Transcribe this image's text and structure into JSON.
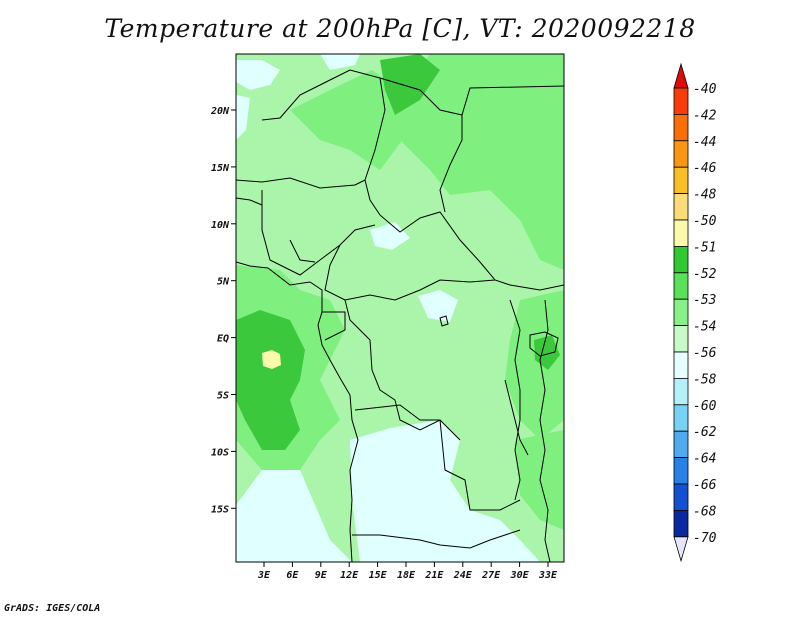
{
  "title": "Temperature at 200hPa [C], VT: 2020092218",
  "credit": "GrADS: IGES/COLA",
  "lat_labels": [
    "20N",
    "15N",
    "10N",
    "5N",
    "EQ",
    "5S",
    "10S",
    "15S"
  ],
  "lon_labels": [
    "3E",
    "6E",
    "9E",
    "12E",
    "15E",
    "18E",
    "21E",
    "24E",
    "27E",
    "30E",
    "33E"
  ],
  "colorbar": {
    "labels": [
      "-40",
      "-42",
      "-44",
      "-46",
      "-48",
      "-50",
      "-51",
      "-52",
      "-53",
      "-54",
      "-56",
      "-58",
      "-60",
      "-62",
      "-64",
      "-66",
      "-68",
      "-70"
    ],
    "colors": [
      "#e00a0a",
      "#fa3c0a",
      "#fa6e0a",
      "#fa9614",
      "#fabe28",
      "#fadc78",
      "#fafaaa",
      "#32c832",
      "#5ae15a",
      "#87f087",
      "#c8fac8",
      "#e6ffff",
      "#b4f0fa",
      "#78d2f5",
      "#50aaf0",
      "#2882e6",
      "#1450d2",
      "#0a28a0",
      "#000064"
    ],
    "top_color": "#e00a0a",
    "bottom_color": "#e6e6fa"
  },
  "fill_colors": {
    "base": "#aaf5aa",
    "light": "#e0ffff",
    "mid": "#7ff07f",
    "dark": "#3cc83c",
    "warm": "#fafaaa"
  }
}
